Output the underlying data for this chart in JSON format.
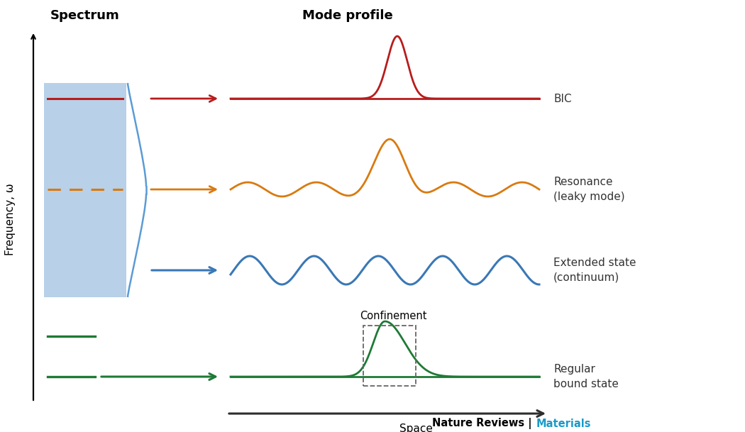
{
  "title_spectrum": "Spectrum",
  "title_mode_profile": "Mode profile",
  "ylabel": "Frequency, ω",
  "xlabel_space": "Space",
  "footer_black": "Nature Reviews |",
  "footer_cyan": "Materials",
  "colors": {
    "bic": "#b81c1c",
    "resonance": "#d97a10",
    "extended": "#3a78b5",
    "bound": "#1e7a35",
    "spectrum_fill": "#b8d0e8",
    "spectrum_border": "#5b9bd5",
    "arrow_gray": "#2d2d2d"
  },
  "labels": {
    "bic": "BIC",
    "resonance": "Resonance\n(leaky mode)",
    "extended": "Extended state\n(continuum)",
    "bound": "Regular\nbound state",
    "confinement": "Confinement"
  },
  "figsize": [
    10.5,
    6.09
  ],
  "dpi": 100
}
